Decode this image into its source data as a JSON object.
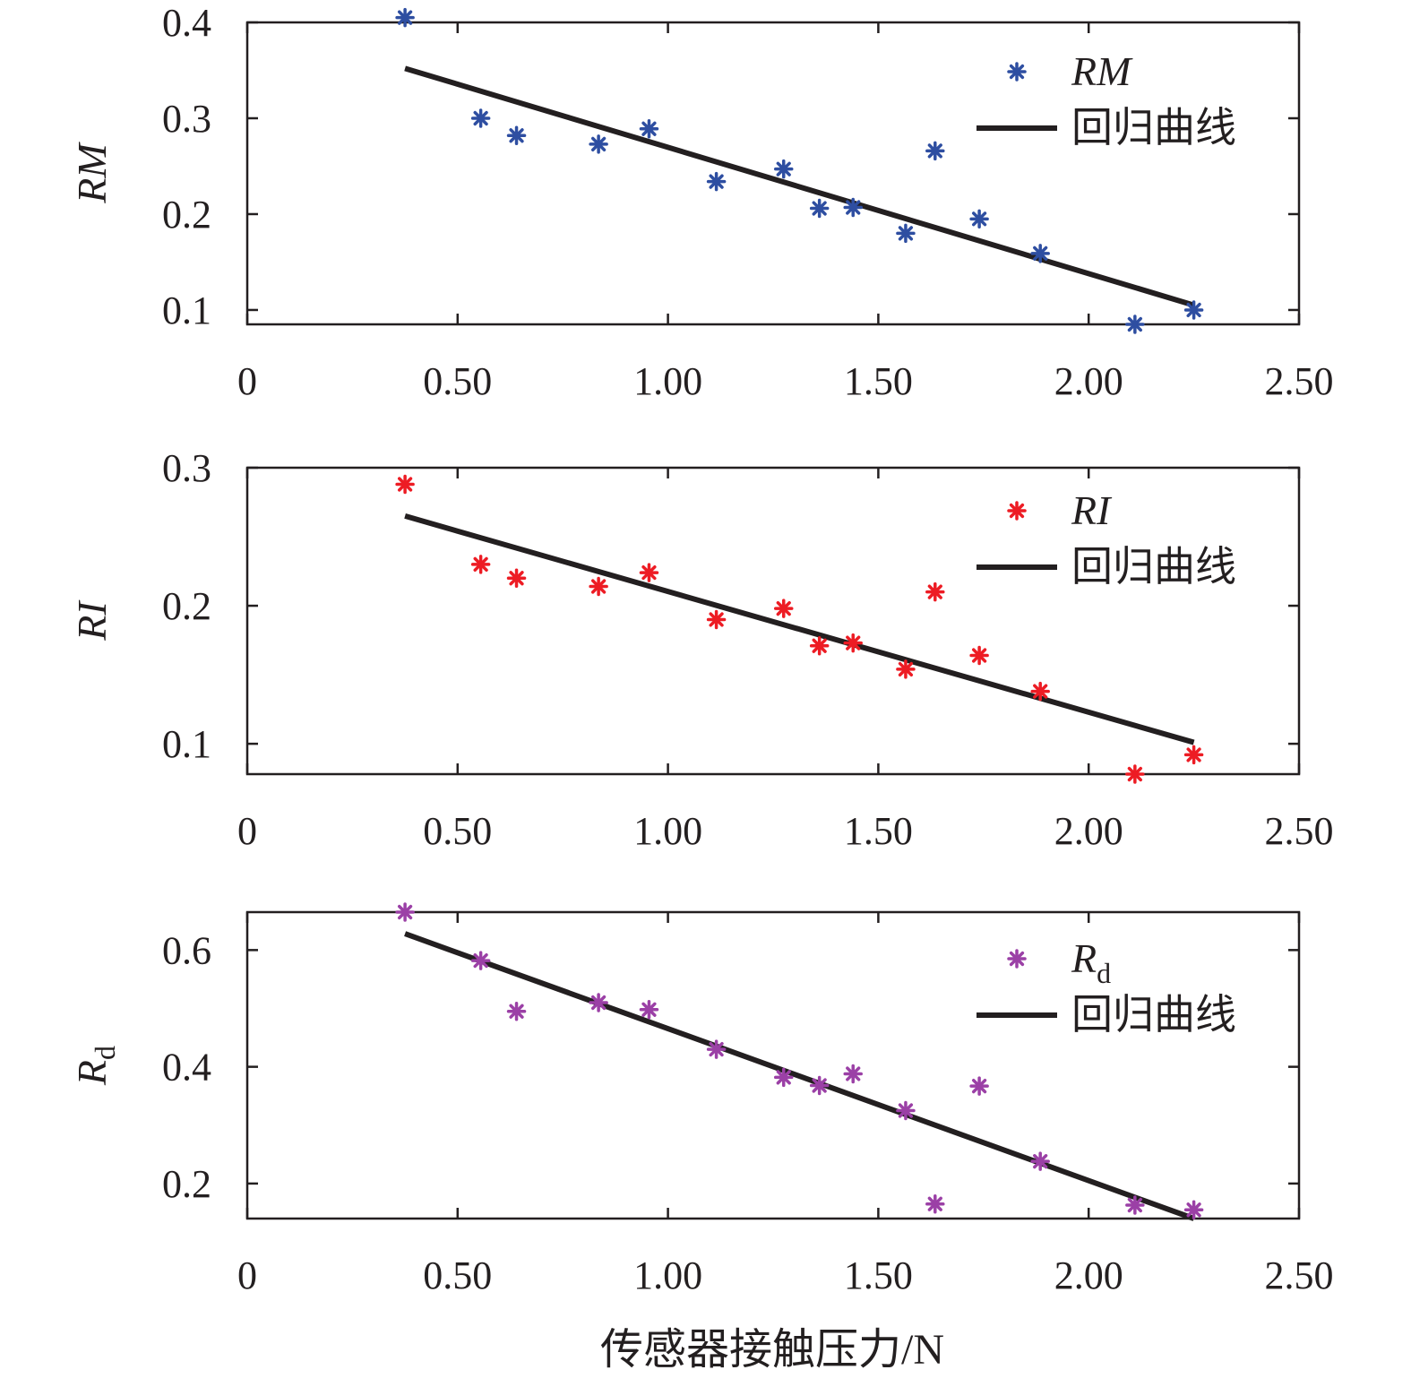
{
  "chart_data": [
    {
      "type": "scatter",
      "ylabel": "RM",
      "ylim": [
        0.085,
        0.4
      ],
      "yticks": [
        0.1,
        0.2,
        0.3,
        0.4
      ],
      "yticklabels": [
        "0.1",
        "0.2",
        "0.3",
        "0.4"
      ],
      "xlim": [
        0,
        2.5
      ],
      "xticks": [
        0,
        0.5,
        1.0,
        1.5,
        2.0,
        2.5
      ],
      "xticklabels": [
        "0",
        "0.50",
        "1.00",
        "1.50",
        "2.00",
        "2.50"
      ],
      "legend_position": "top-right",
      "series": [
        {
          "name": "RM",
          "marker": "asterisk",
          "color": "#2e4ea1",
          "x": [
            0.375,
            0.555,
            0.64,
            0.835,
            0.955,
            1.115,
            1.275,
            1.36,
            1.44,
            1.565,
            1.635,
            1.74,
            1.885,
            2.11,
            2.25
          ],
          "y": [
            0.405,
            0.3,
            0.282,
            0.273,
            0.289,
            0.234,
            0.247,
            0.206,
            0.207,
            0.18,
            0.266,
            0.195,
            0.159,
            0.085,
            0.1
          ]
        },
        {
          "name": "回归曲线",
          "type": "line",
          "color": "#231f20",
          "x": [
            0.375,
            2.25
          ],
          "y": [
            0.352,
            0.105
          ]
        }
      ]
    },
    {
      "type": "scatter",
      "ylabel": "RI",
      "ylim": [
        0.078,
        0.3
      ],
      "yticks": [
        0.1,
        0.2,
        0.3
      ],
      "yticklabels": [
        "0.1",
        "0.2",
        "0.3"
      ],
      "xlim": [
        0,
        2.5
      ],
      "xticks": [
        0,
        0.5,
        1.0,
        1.5,
        2.0,
        2.5
      ],
      "xticklabels": [
        "0",
        "0.50",
        "1.00",
        "1.50",
        "2.00",
        "2.50"
      ],
      "legend_position": "top-right",
      "series": [
        {
          "name": "RI",
          "marker": "asterisk",
          "color": "#ed1c24",
          "x": [
            0.375,
            0.555,
            0.64,
            0.835,
            0.955,
            1.115,
            1.275,
            1.36,
            1.44,
            1.565,
            1.635,
            1.74,
            1.885,
            2.11,
            2.25
          ],
          "y": [
            0.288,
            0.23,
            0.22,
            0.214,
            0.224,
            0.19,
            0.198,
            0.171,
            0.173,
            0.154,
            0.21,
            0.164,
            0.138,
            0.078,
            0.092
          ]
        },
        {
          "name": "回归曲线",
          "type": "line",
          "color": "#231f20",
          "x": [
            0.375,
            2.25
          ],
          "y": [
            0.265,
            0.101
          ]
        }
      ]
    },
    {
      "type": "scatter",
      "ylabel": "Rd",
      "ylim": [
        0.14,
        0.665
      ],
      "yticks": [
        0.2,
        0.4,
        0.6
      ],
      "yticklabels": [
        "0.2",
        "0.4",
        "0.6"
      ],
      "xlim": [
        0,
        2.5
      ],
      "xticks": [
        0,
        0.5,
        1.0,
        1.5,
        2.0,
        2.5
      ],
      "xticklabels": [
        "0",
        "0.50",
        "1.00",
        "1.50",
        "2.00",
        "2.50"
      ],
      "xlabel": "传感器接触压力/N",
      "legend_position": "top-right",
      "series": [
        {
          "name": "Rd",
          "marker": "asterisk",
          "color": "#9b40a6",
          "x": [
            0.375,
            0.555,
            0.64,
            0.835,
            0.955,
            1.115,
            1.275,
            1.36,
            1.44,
            1.565,
            1.635,
            1.74,
            1.885,
            2.11,
            2.25
          ],
          "y": [
            0.665,
            0.582,
            0.495,
            0.51,
            0.498,
            0.43,
            0.382,
            0.368,
            0.388,
            0.325,
            0.165,
            0.367,
            0.238,
            0.163,
            0.155
          ]
        },
        {
          "name": "回归曲线",
          "type": "line",
          "color": "#231f20",
          "x": [
            0.375,
            2.25
          ],
          "y": [
            0.628,
            0.14
          ]
        }
      ]
    }
  ],
  "ylabel_parts": [
    {
      "main": "RM",
      "sub": ""
    },
    {
      "main": "RI",
      "sub": ""
    },
    {
      "main": "R",
      "sub": "d"
    }
  ],
  "legend_parts": [
    {
      "main": "RM",
      "sub": ""
    },
    {
      "main": "RI",
      "sub": ""
    },
    {
      "main": "R",
      "sub": "d"
    }
  ]
}
